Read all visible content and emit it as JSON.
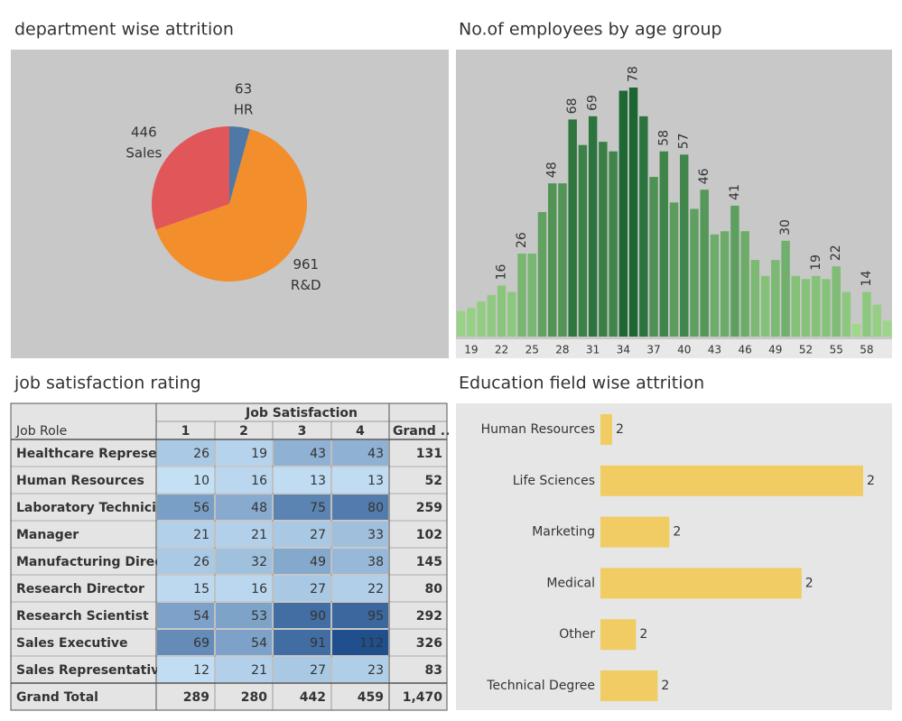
{
  "chart_data": [
    {
      "type": "pie",
      "title": "department wise attrition",
      "categories": [
        "HR",
        "R&D",
        "Sales"
      ],
      "values": [
        63,
        961,
        446
      ],
      "colors": [
        "#4e79a7",
        "#f28e2b",
        "#e15759"
      ]
    },
    {
      "type": "histogram",
      "title": "No.of employees by age group",
      "x": [
        18,
        19,
        20,
        21,
        22,
        23,
        24,
        25,
        26,
        27,
        28,
        29,
        30,
        31,
        32,
        33,
        34,
        35,
        36,
        37,
        38,
        39,
        40,
        41,
        42,
        43,
        44,
        45,
        46,
        47,
        48,
        49,
        50,
        51,
        52,
        53,
        54,
        55,
        56,
        57,
        58,
        59,
        60
      ],
      "values": [
        8,
        9,
        11,
        13,
        16,
        14,
        26,
        26,
        39,
        48,
        48,
        68,
        60,
        69,
        61,
        58,
        77,
        78,
        69,
        50,
        58,
        42,
        57,
        40,
        46,
        32,
        33,
        41,
        33,
        24,
        19,
        24,
        30,
        19,
        18,
        19,
        18,
        22,
        14,
        4,
        14,
        10,
        5
      ],
      "value_labels": [
        null,
        null,
        null,
        null,
        "16",
        null,
        "26",
        null,
        null,
        "48",
        null,
        "68",
        null,
        "69",
        null,
        null,
        null,
        "78",
        null,
        null,
        "58",
        null,
        "57",
        null,
        "46",
        null,
        null,
        "41",
        null,
        null,
        null,
        null,
        "30",
        null,
        null,
        "19",
        null,
        "22",
        null,
        null,
        "14",
        null,
        null
      ],
      "xticks": [
        19,
        22,
        25,
        28,
        31,
        34,
        37,
        40,
        43,
        46,
        49,
        52,
        55,
        58
      ],
      "color_range": [
        "#a6de90",
        "#1c6632"
      ]
    },
    {
      "type": "table",
      "title": "job satisfaction rating",
      "column_group": "Job Satisfaction",
      "row_header": "Job Role",
      "columns": [
        "1",
        "2",
        "3",
        "4",
        "Grand .."
      ],
      "rows": [
        {
          "name": "Healthcare Represe..",
          "values": [
            26,
            19,
            43,
            43
          ],
          "total": 131
        },
        {
          "name": "Human Resources",
          "values": [
            10,
            16,
            13,
            13
          ],
          "total": 52
        },
        {
          "name": "Laboratory Technici..",
          "values": [
            56,
            48,
            75,
            80
          ],
          "total": 259
        },
        {
          "name": "Manager",
          "values": [
            21,
            21,
            27,
            33
          ],
          "total": 102
        },
        {
          "name": "Manufacturing Direc..",
          "values": [
            26,
            32,
            49,
            38
          ],
          "total": 145
        },
        {
          "name": "Research Director",
          "values": [
            15,
            16,
            27,
            22
          ],
          "total": 80
        },
        {
          "name": "Research Scientist",
          "values": [
            54,
            53,
            90,
            95
          ],
          "total": 292
        },
        {
          "name": "Sales Executive",
          "values": [
            69,
            54,
            91,
            112
          ],
          "total": 326
        },
        {
          "name": "Sales Representative",
          "values": [
            12,
            21,
            27,
            23
          ],
          "total": 83
        }
      ],
      "total_row": {
        "name": "Grand Total",
        "values": [
          289,
          280,
          442,
          459
        ],
        "total": {
          "value": 1470,
          "label": "1,470"
        }
      },
      "color_range": [
        "#c4e0f5",
        "#1f4f8c"
      ]
    },
    {
      "type": "hbar",
      "title": "Education field  wise attrition",
      "categories": [
        "Human Resources",
        "Life Sciences",
        "Marketing",
        "Medical",
        "Other",
        "Technical Degree"
      ],
      "values": [
        27,
        606,
        159,
        464,
        82,
        132
      ],
      "label_values": [
        2,
        2,
        2,
        2,
        2,
        2
      ],
      "color": "#f0cc62"
    }
  ]
}
